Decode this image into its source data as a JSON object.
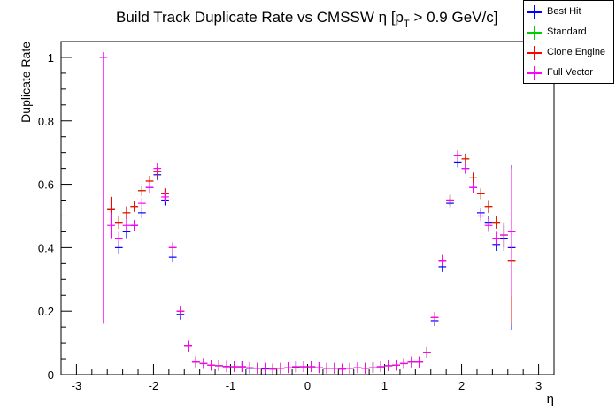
{
  "chart_data": {
    "type": "scatter",
    "title": "Build Track Duplicate Rate vs CMSSW η [p",
    "title_sub": "T",
    "title_end": " > 0.9 GeV/c]",
    "xlabel": "η",
    "ylabel": "Duplicate Rate",
    "xlim": [
      -3.2,
      3.2
    ],
    "ylim": [
      0,
      1.05
    ],
    "x_ticks": [
      -3,
      -2,
      -1,
      0,
      1,
      2,
      3
    ],
    "x_tick_labels": [
      "-3",
      "-2",
      "-1",
      "0",
      "1",
      "2",
      "3"
    ],
    "y_ticks": [
      0,
      0.2,
      0.4,
      0.6,
      0.8,
      1
    ],
    "y_tick_labels": [
      "0",
      "0.2",
      "0.4",
      "0.6",
      "0.8",
      "1"
    ],
    "grid": false,
    "legend_position": "top-right",
    "x": [
      -2.65,
      -2.55,
      -2.45,
      -2.35,
      -2.25,
      -2.15,
      -2.05,
      -1.95,
      -1.85,
      -1.75,
      -1.65,
      -1.55,
      -1.45,
      -1.35,
      -1.25,
      -1.15,
      -1.05,
      -0.95,
      -0.85,
      -0.75,
      -0.65,
      -0.55,
      -0.45,
      -0.35,
      -0.25,
      -0.15,
      -0.05,
      0.05,
      0.15,
      0.25,
      0.35,
      0.45,
      0.55,
      0.65,
      0.75,
      0.85,
      0.95,
      1.05,
      1.15,
      1.25,
      1.35,
      1.45,
      1.55,
      1.65,
      1.75,
      1.85,
      1.95,
      2.05,
      2.15,
      2.25,
      2.35,
      2.45,
      2.55,
      2.65
    ],
    "series": [
      {
        "name": "Best Hit",
        "color": "#0000ff",
        "values": [
          null,
          0.52,
          0.4,
          0.45,
          0.47,
          0.51,
          0.59,
          0.63,
          0.55,
          0.37,
          0.19,
          0.09,
          0.04,
          0.035,
          0.03,
          0.028,
          0.025,
          0.025,
          0.025,
          0.02,
          0.02,
          0.018,
          0.018,
          0.02,
          0.022,
          0.024,
          0.025,
          0.025,
          0.022,
          0.02,
          0.02,
          0.018,
          0.02,
          0.022,
          0.02,
          0.022,
          0.025,
          0.028,
          0.03,
          0.035,
          0.04,
          0.04,
          0.07,
          0.17,
          0.34,
          0.54,
          0.67,
          0.65,
          0.59,
          0.51,
          0.48,
          0.41,
          0.43,
          0.4
        ],
        "errors": [
          null,
          0.04,
          0.02,
          0.02,
          0.015,
          0.015,
          0.012,
          0.012,
          0.012,
          0.01,
          0.008,
          0.005,
          0.004,
          0.004,
          0.003,
          0.003,
          0.003,
          0.003,
          0.003,
          0.003,
          0.003,
          0.003,
          0.003,
          0.003,
          0.003,
          0.003,
          0.003,
          0.003,
          0.003,
          0.003,
          0.003,
          0.003,
          0.003,
          0.003,
          0.003,
          0.003,
          0.003,
          0.003,
          0.003,
          0.004,
          0.004,
          0.004,
          0.005,
          0.008,
          0.01,
          0.012,
          0.012,
          0.012,
          0.015,
          0.015,
          0.02,
          0.02,
          0.04,
          0.26
        ]
      },
      {
        "name": "Standard",
        "color": "#00cc00",
        "values": [
          null,
          0.52,
          0.48,
          0.51,
          0.53,
          0.58,
          0.61,
          0.64,
          0.57,
          0.4,
          0.2,
          0.09,
          0.04,
          0.035,
          0.03,
          0.028,
          0.026,
          0.025,
          0.025,
          0.022,
          0.02,
          0.02,
          0.018,
          0.02,
          0.022,
          0.025,
          0.025,
          0.025,
          0.022,
          0.02,
          0.02,
          0.018,
          0.02,
          0.022,
          0.02,
          0.022,
          0.025,
          0.028,
          0.03,
          0.035,
          0.04,
          0.04,
          0.07,
          0.18,
          0.36,
          0.55,
          0.69,
          0.68,
          0.62,
          0.57,
          0.53,
          0.48,
          0.44,
          0.36
        ],
        "errors": [
          null,
          0.04,
          0.02,
          0.02,
          0.015,
          0.015,
          0.012,
          0.012,
          0.012,
          0.01,
          0.008,
          0.005,
          0.004,
          0.004,
          0.003,
          0.003,
          0.003,
          0.003,
          0.003,
          0.003,
          0.003,
          0.003,
          0.003,
          0.003,
          0.003,
          0.003,
          0.003,
          0.003,
          0.003,
          0.003,
          0.003,
          0.003,
          0.003,
          0.003,
          0.003,
          0.003,
          0.003,
          0.003,
          0.003,
          0.004,
          0.004,
          0.004,
          0.005,
          0.008,
          0.01,
          0.012,
          0.012,
          0.012,
          0.015,
          0.015,
          0.02,
          0.02,
          0.04,
          0.2
        ]
      },
      {
        "name": "Clone Engine",
        "color": "#ff0000",
        "values": [
          null,
          0.52,
          0.48,
          0.51,
          0.53,
          0.58,
          0.61,
          0.64,
          0.57,
          0.4,
          0.2,
          0.09,
          0.04,
          0.035,
          0.03,
          0.028,
          0.026,
          0.025,
          0.025,
          0.022,
          0.02,
          0.02,
          0.018,
          0.02,
          0.022,
          0.025,
          0.025,
          0.025,
          0.022,
          0.02,
          0.02,
          0.018,
          0.02,
          0.022,
          0.02,
          0.022,
          0.025,
          0.028,
          0.03,
          0.035,
          0.04,
          0.04,
          0.07,
          0.18,
          0.36,
          0.55,
          0.69,
          0.68,
          0.62,
          0.57,
          0.53,
          0.48,
          0.44,
          0.36
        ],
        "errors": [
          null,
          0.04,
          0.02,
          0.02,
          0.015,
          0.015,
          0.012,
          0.012,
          0.012,
          0.01,
          0.008,
          0.005,
          0.004,
          0.004,
          0.003,
          0.003,
          0.003,
          0.003,
          0.003,
          0.003,
          0.003,
          0.003,
          0.003,
          0.003,
          0.003,
          0.003,
          0.003,
          0.003,
          0.003,
          0.003,
          0.003,
          0.003,
          0.003,
          0.003,
          0.003,
          0.003,
          0.003,
          0.003,
          0.003,
          0.004,
          0.004,
          0.004,
          0.005,
          0.008,
          0.01,
          0.012,
          0.012,
          0.012,
          0.015,
          0.015,
          0.02,
          0.02,
          0.04,
          0.2
        ]
      },
      {
        "name": "Full Vector",
        "color": "#ff00ff",
        "values": [
          1.0,
          0.47,
          0.43,
          0.47,
          0.47,
          0.54,
          0.59,
          0.65,
          0.56,
          0.4,
          0.2,
          0.09,
          0.04,
          0.035,
          0.03,
          0.028,
          0.026,
          0.025,
          0.025,
          0.022,
          0.02,
          0.02,
          0.018,
          0.02,
          0.022,
          0.025,
          0.025,
          0.025,
          0.022,
          0.02,
          0.02,
          0.018,
          0.02,
          0.022,
          0.02,
          0.022,
          0.025,
          0.028,
          0.03,
          0.035,
          0.04,
          0.04,
          0.07,
          0.18,
          0.36,
          0.55,
          0.69,
          0.65,
          0.59,
          0.5,
          0.47,
          0.43,
          0.44,
          0.45
        ],
        "errors": [
          0.0,
          0.04,
          0.02,
          0.02,
          0.015,
          0.015,
          0.012,
          0.012,
          0.012,
          0.01,
          0.008,
          0.005,
          0.004,
          0.004,
          0.003,
          0.003,
          0.003,
          0.003,
          0.003,
          0.003,
          0.003,
          0.003,
          0.003,
          0.003,
          0.003,
          0.003,
          0.003,
          0.003,
          0.003,
          0.003,
          0.003,
          0.003,
          0.003,
          0.003,
          0.003,
          0.003,
          0.003,
          0.003,
          0.003,
          0.004,
          0.004,
          0.004,
          0.005,
          0.008,
          0.01,
          0.012,
          0.012,
          0.012,
          0.015,
          0.015,
          0.02,
          0.02,
          0.04,
          0.2
        ],
        "error_low_first": 0.16
      }
    ]
  }
}
